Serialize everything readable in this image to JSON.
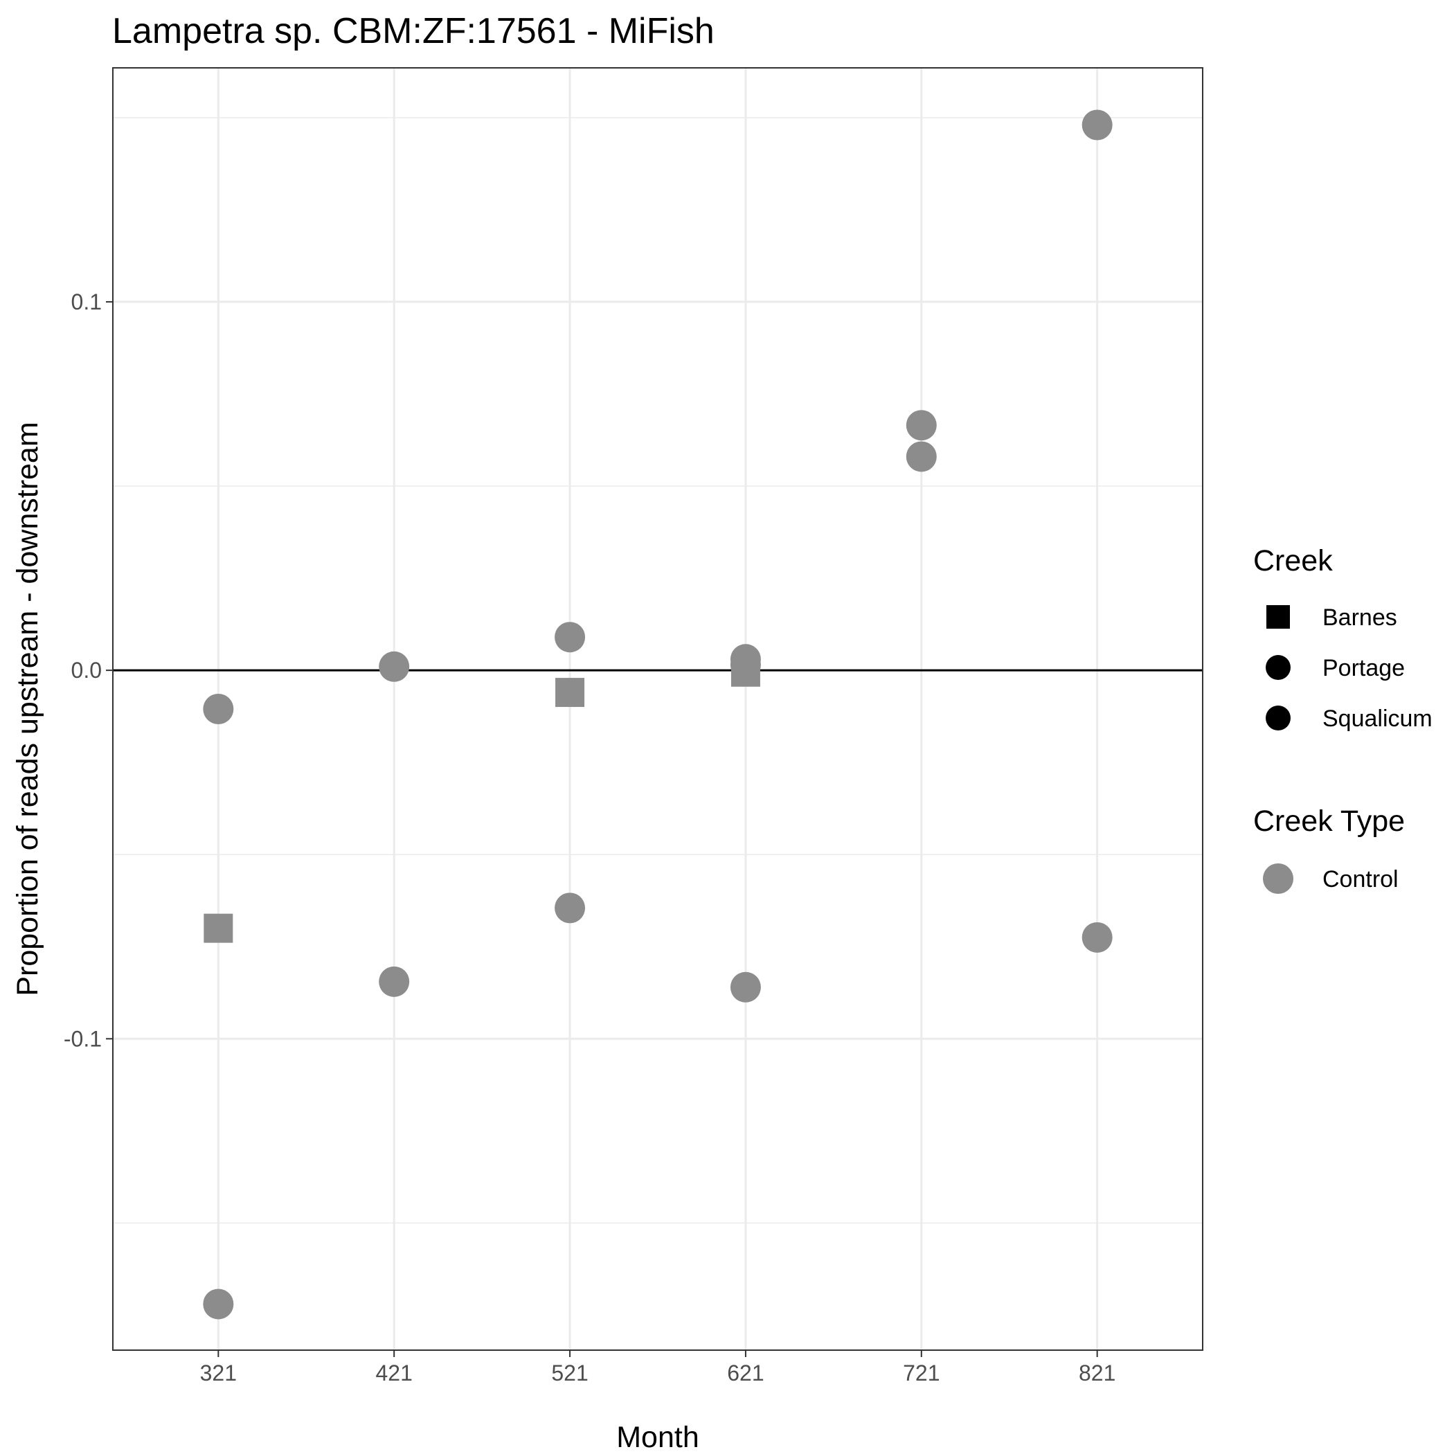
{
  "chart_data": {
    "type": "scatter",
    "title": "Lampetra sp. CBM:ZF:17561 - MiFish",
    "xlabel": "Month",
    "ylabel": "Proportion of reads upstream - downstream",
    "x_ticks": [
      "321",
      "421",
      "521",
      "621",
      "721",
      "821"
    ],
    "y_ticks": [
      {
        "value": 0.1,
        "label": "0.1"
      },
      {
        "value": 0.0,
        "label": "0.0"
      },
      {
        "value": -0.1,
        "label": "-0.1"
      }
    ],
    "xlim": [
      0.4,
      6.6
    ],
    "ylim": [
      -0.1845,
      0.1635
    ],
    "grid": true,
    "reference_line_y": 0,
    "points_color": "#8c8c8c",
    "points": [
      {
        "x": "321",
        "y": -0.0105,
        "creek": "Squalicum"
      },
      {
        "x": "321",
        "y": -0.07,
        "creek": "Barnes"
      },
      {
        "x": "321",
        "y": -0.172,
        "creek": "Portage"
      },
      {
        "x": "421",
        "y": 0.001,
        "creek": "Squalicum"
      },
      {
        "x": "421",
        "y": -0.0845,
        "creek": "Portage"
      },
      {
        "x": "521",
        "y": 0.009,
        "creek": "Squalicum"
      },
      {
        "x": "521",
        "y": -0.006,
        "creek": "Barnes"
      },
      {
        "x": "521",
        "y": -0.0645,
        "creek": "Portage"
      },
      {
        "x": "621",
        "y": 0.003,
        "creek": "Squalicum"
      },
      {
        "x": "621",
        "y": 0.0015,
        "creek": "Portage"
      },
      {
        "x": "621",
        "y": -0.0005,
        "creek": "Barnes"
      },
      {
        "x": "621",
        "y": -0.086,
        "creek": "Portage"
      },
      {
        "x": "721",
        "y": 0.0665,
        "creek": "Squalicum"
      },
      {
        "x": "721",
        "y": 0.058,
        "creek": "Portage"
      },
      {
        "x": "821",
        "y": 0.148,
        "creek": "Portage"
      },
      {
        "x": "821",
        "y": -0.0725,
        "creek": "Squalicum"
      }
    ],
    "legend": {
      "placement": "right",
      "creek": {
        "title": "Creek",
        "items": [
          {
            "label": "Barnes",
            "shape": "square"
          },
          {
            "label": "Portage",
            "shape": "circle"
          },
          {
            "label": "Squalicum",
            "shape": "circle"
          }
        ]
      },
      "creek_type": {
        "title": "Creek Type",
        "items": [
          {
            "label": "Control",
            "shape": "circle",
            "color": "#8c8c8c"
          }
        ]
      }
    }
  }
}
